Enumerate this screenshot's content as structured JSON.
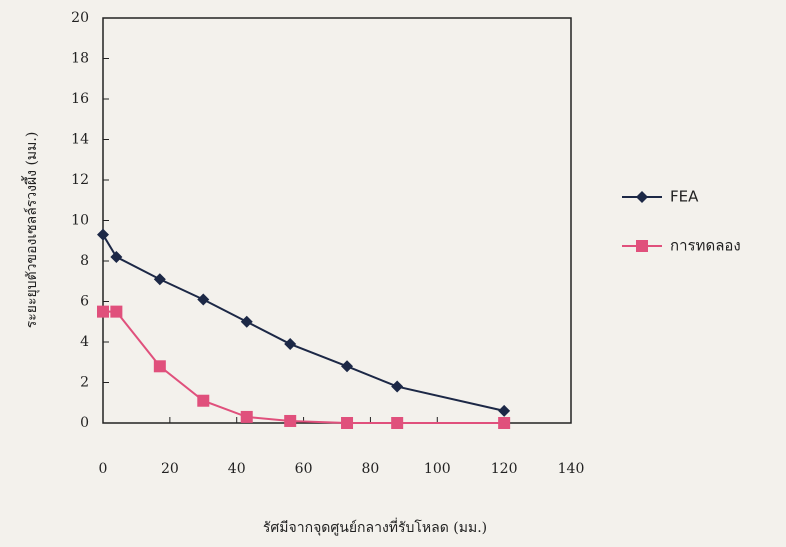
{
  "chart_data": {
    "type": "line",
    "x_label": "รัศมีจากจุดศูนย์กลางที่รับโหลด (มม.)",
    "y_label": "ระยะยุบตัวของเซลล์รวงผึ้ง (มม.)",
    "xlim": [
      0,
      140
    ],
    "xticks": [
      0,
      20,
      40,
      60,
      80,
      100,
      120,
      140
    ],
    "ylim": [
      0,
      20
    ],
    "yticks": [
      0,
      2,
      4,
      6,
      8,
      10,
      12,
      14,
      16,
      18,
      20
    ],
    "grid": false,
    "series": [
      {
        "name": "FEA",
        "color": "#1c2846",
        "marker": "diamond",
        "x": [
          0,
          4,
          17,
          30,
          43,
          56,
          73,
          88,
          120
        ],
        "values": [
          9.3,
          8.2,
          7.1,
          6.1,
          5.0,
          3.9,
          2.8,
          1.8,
          0.6
        ]
      },
      {
        "name": "การทดลอง",
        "color": "#e0507c",
        "marker": "square",
        "x": [
          0,
          4,
          17,
          30,
          43,
          56,
          73,
          88,
          120
        ],
        "values": [
          5.5,
          5.5,
          2.8,
          1.1,
          0.3,
          0.1,
          0,
          0,
          0
        ]
      }
    ]
  }
}
